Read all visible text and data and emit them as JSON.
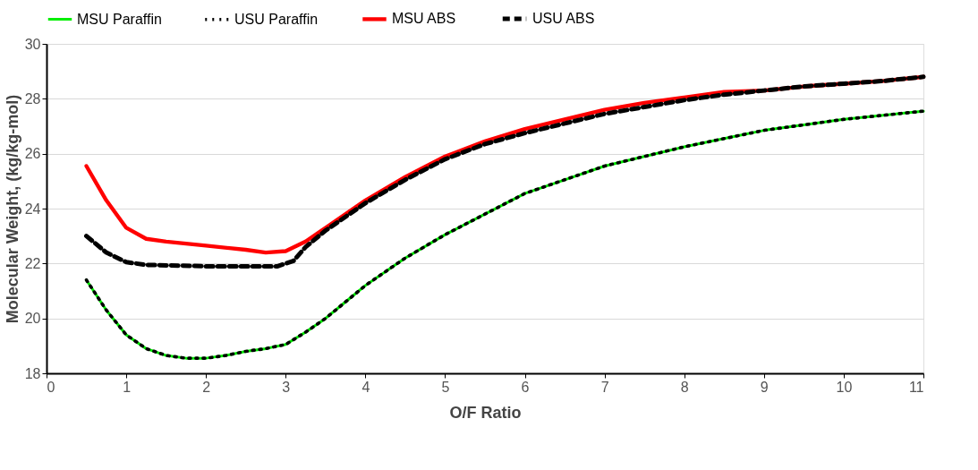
{
  "chart_data": {
    "type": "line",
    "xlabel": "O/F Ratio",
    "ylabel": "Molecular Weight, (kg/kg-mol)",
    "xlim": [
      0,
      11
    ],
    "xticks": [
      0,
      1,
      2,
      3,
      4,
      5,
      6,
      7,
      8,
      9,
      10,
      11
    ],
    "ylim": [
      18,
      30
    ],
    "yticks": [
      18,
      20,
      22,
      24,
      26,
      28,
      30
    ],
    "grid": "y",
    "legend": "top",
    "marker": "none",
    "series": [
      {
        "name": "MSU Paraffin",
        "color": "#00ee00",
        "line_style": "solid",
        "x": [
          0.5,
          0.75,
          1,
          1.25,
          1.5,
          1.75,
          2,
          2.25,
          2.5,
          2.75,
          3,
          3.25,
          3.5,
          3.75,
          4,
          4.5,
          5,
          5.5,
          6,
          6.5,
          7,
          7.5,
          8,
          8.5,
          9,
          9.5,
          10,
          10.5,
          11
        ],
        "values": [
          21.4,
          20.3,
          19.4,
          18.9,
          18.65,
          18.55,
          18.55,
          18.65,
          18.8,
          18.9,
          19.05,
          19.5,
          20.0,
          20.6,
          21.2,
          22.2,
          23.05,
          23.8,
          24.55,
          25.05,
          25.55,
          25.9,
          26.25,
          26.55,
          26.85,
          27.05,
          27.25,
          27.4,
          27.55
        ]
      },
      {
        "name": "USU Paraffin",
        "color": "#000000",
        "line_style": "dotted",
        "x": [
          0.5,
          0.75,
          1,
          1.25,
          1.5,
          1.75,
          2,
          2.25,
          2.5,
          2.75,
          3,
          3.25,
          3.5,
          3.75,
          4,
          4.5,
          5,
          5.5,
          6,
          6.5,
          7,
          7.5,
          8,
          8.5,
          9,
          9.5,
          10,
          10.5,
          11
        ],
        "values": [
          21.4,
          20.3,
          19.4,
          18.9,
          18.65,
          18.55,
          18.55,
          18.65,
          18.8,
          18.9,
          19.05,
          19.5,
          20.0,
          20.6,
          21.2,
          22.2,
          23.05,
          23.8,
          24.55,
          25.05,
          25.55,
          25.9,
          26.25,
          26.55,
          26.85,
          27.05,
          27.25,
          27.4,
          27.55
        ]
      },
      {
        "name": "MSU ABS",
        "color": "#ff0000",
        "line_style": "solid",
        "x": [
          0.5,
          0.75,
          1,
          1.25,
          1.5,
          2,
          2.5,
          2.75,
          3,
          3.25,
          3.5,
          4,
          4.5,
          5,
          5.5,
          6,
          6.5,
          7,
          7.5,
          8,
          8.5,
          9,
          9.5,
          10,
          10.5,
          11
        ],
        "values": [
          25.55,
          24.3,
          23.3,
          22.9,
          22.8,
          22.65,
          22.5,
          22.4,
          22.45,
          22.8,
          23.3,
          24.3,
          25.15,
          25.9,
          26.45,
          26.9,
          27.25,
          27.6,
          27.85,
          28.05,
          28.25,
          28.3,
          28.45,
          28.55,
          28.65,
          28.8
        ]
      },
      {
        "name": "USU ABS",
        "color": "#000000",
        "line_style": "dashed",
        "x": [
          0.5,
          0.75,
          1,
          1.25,
          2,
          2.5,
          2.9,
          3.1,
          3.25,
          3.5,
          4,
          4.5,
          5,
          5.5,
          6,
          6.5,
          7,
          7.5,
          8,
          8.5,
          9,
          9.5,
          10,
          10.5,
          11
        ],
        "values": [
          23.0,
          22.4,
          22.05,
          21.95,
          21.9,
          21.9,
          21.9,
          22.1,
          22.6,
          23.2,
          24.2,
          25.05,
          25.8,
          26.35,
          26.75,
          27.1,
          27.45,
          27.7,
          27.95,
          28.15,
          28.3,
          28.45,
          28.55,
          28.65,
          28.8
        ]
      }
    ]
  }
}
